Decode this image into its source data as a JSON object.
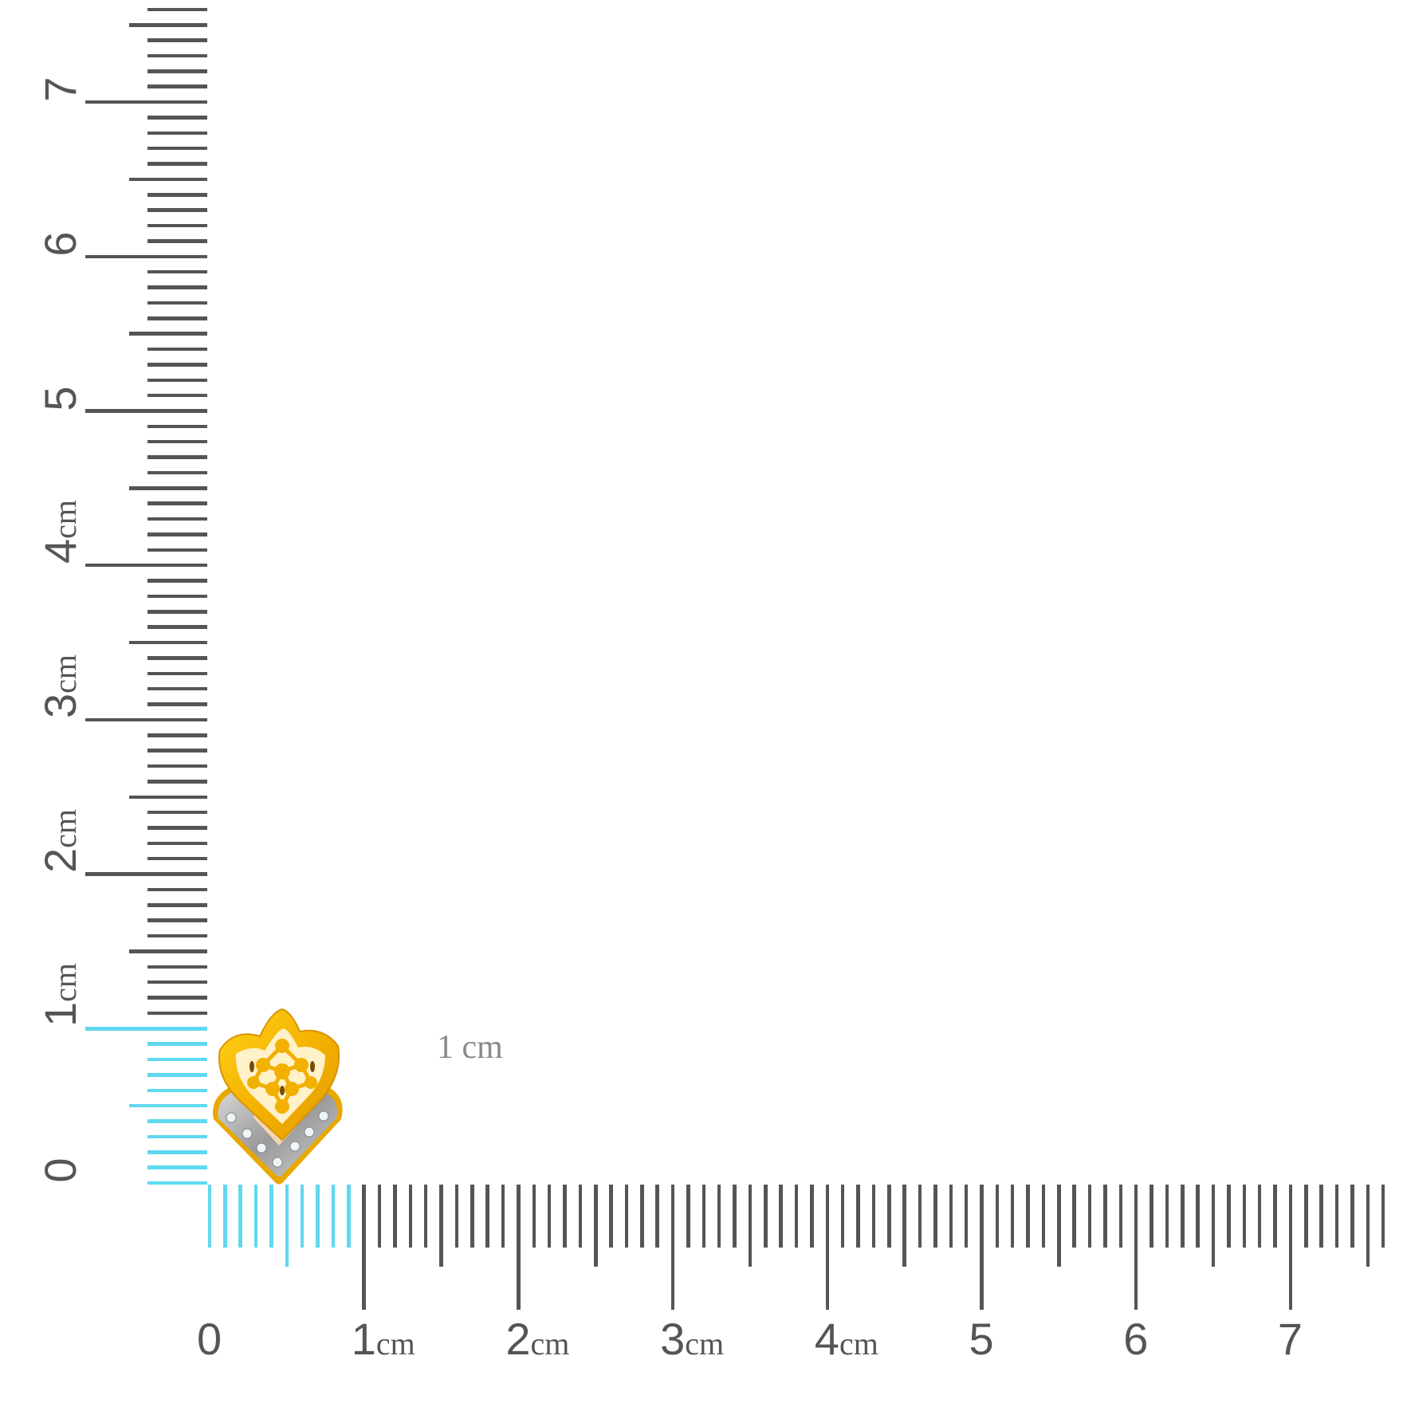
{
  "colors": {
    "ruler": "#555555",
    "highlight": "#5fd8f0",
    "gold": "#f4b400",
    "silver": "#b9b9b9"
  },
  "scale_unit": "cm",
  "horizontal_ruler": {
    "labels": [
      {
        "num": "0",
        "unit": ""
      },
      {
        "num": "1",
        "unit": "cm"
      },
      {
        "num": "2",
        "unit": "cm"
      },
      {
        "num": "3",
        "unit": "cm"
      },
      {
        "num": "4",
        "unit": "cm"
      },
      {
        "num": "5",
        "unit": ""
      },
      {
        "num": "6",
        "unit": ""
      },
      {
        "num": "7",
        "unit": ""
      }
    ],
    "highlighted_range_cm": [
      0,
      0.9
    ]
  },
  "vertical_ruler": {
    "labels": [
      {
        "num": "0",
        "unit": ""
      },
      {
        "num": "1",
        "unit": "cm"
      },
      {
        "num": "2",
        "unit": "cm"
      },
      {
        "num": "3",
        "unit": "cm"
      },
      {
        "num": "4",
        "unit": "cm"
      },
      {
        "num": "5",
        "unit": ""
      },
      {
        "num": "6",
        "unit": ""
      },
      {
        "num": "7",
        "unit": ""
      }
    ],
    "highlighted_range_cm": [
      0,
      1.0
    ]
  },
  "caption": "1 cm",
  "product": {
    "icon": "gold-stud-earring-icon"
  }
}
